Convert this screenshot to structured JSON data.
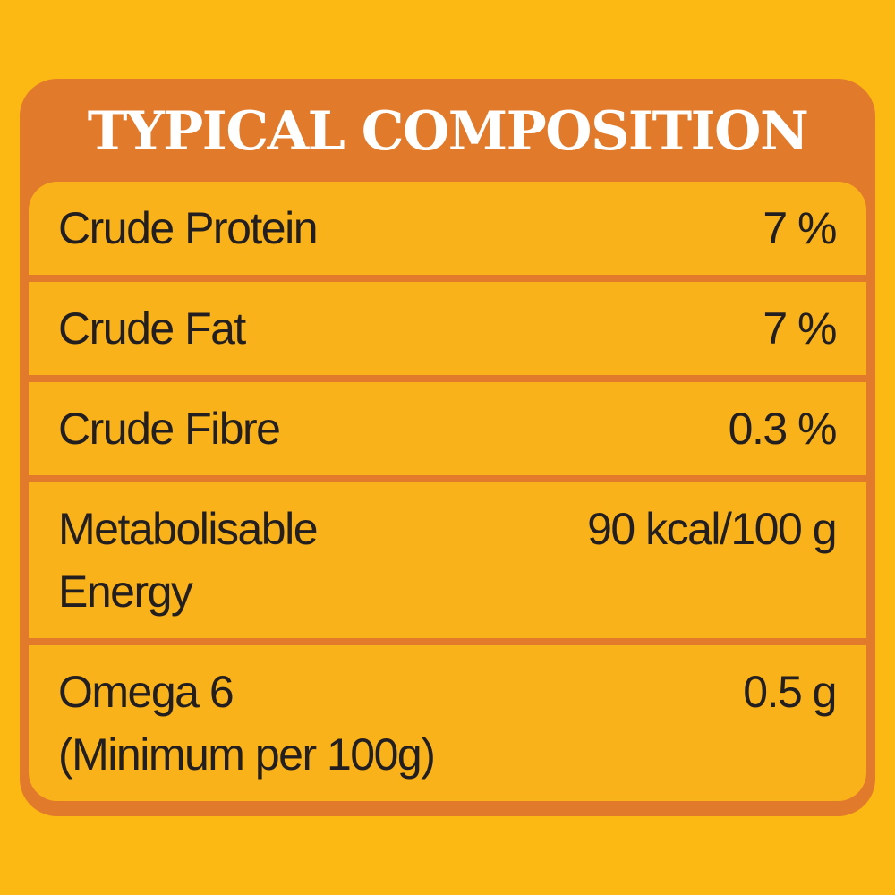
{
  "title": "TYPICAL COMPOSITION",
  "table": {
    "rows": [
      {
        "label": [
          "Crude Protein"
        ],
        "value": "7 %"
      },
      {
        "label": [
          "Crude Fat"
        ],
        "value": "7 %"
      },
      {
        "label": [
          "Crude Fibre"
        ],
        "value": "0.3 %"
      },
      {
        "label": [
          "Metabolisable",
          "Energy"
        ],
        "value": "90 kcal/100 g"
      },
      {
        "label": [
          "Omega 6",
          "(Minimum per 100g)"
        ],
        "value": "0.5 g"
      }
    ]
  }
}
